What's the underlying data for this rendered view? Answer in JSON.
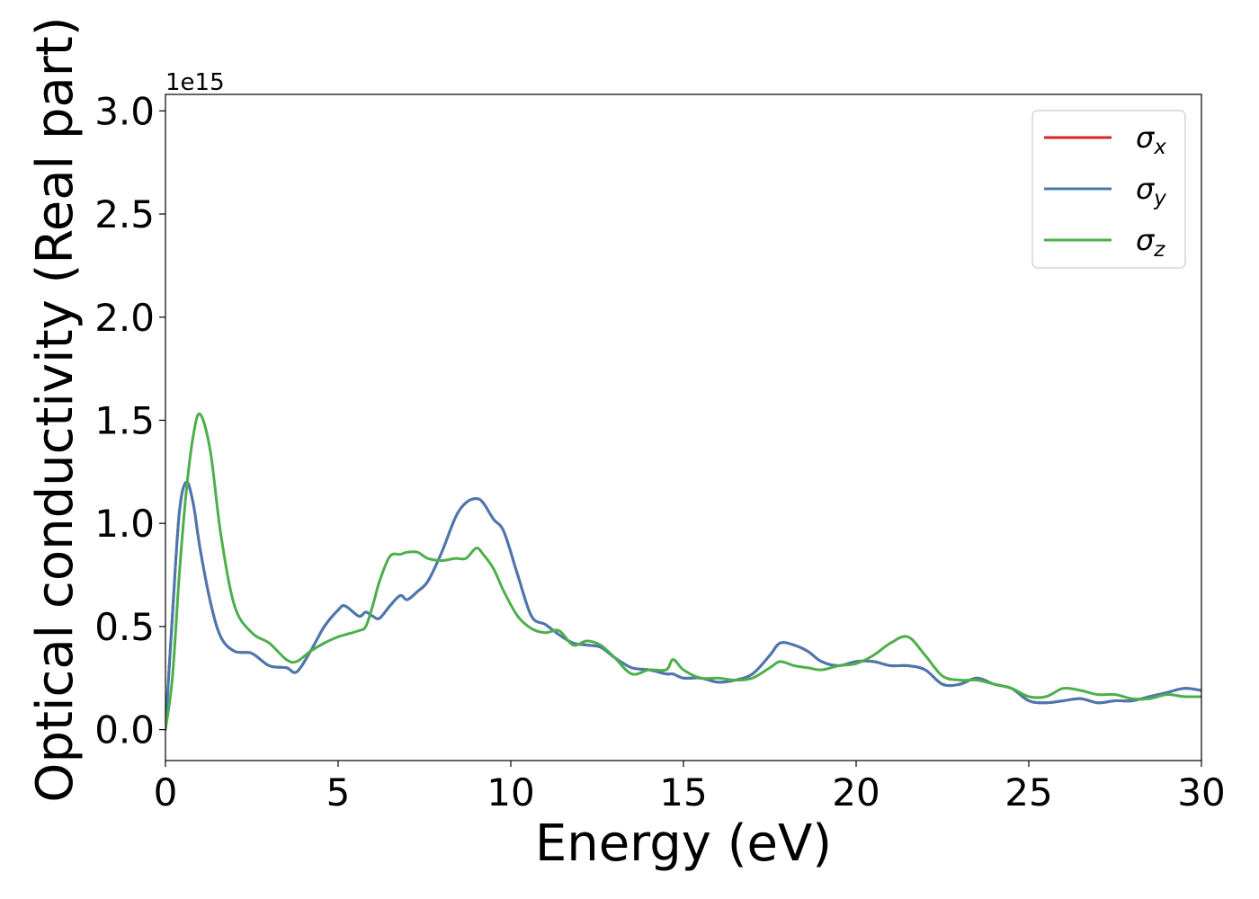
{
  "chart_data": {
    "type": "line",
    "title": "",
    "xlabel": "Energy (eV)",
    "ylabel": "Optical conductivity (Real part)",
    "y_offset_label": "1e15",
    "xlim": [
      0,
      30
    ],
    "ylim": [
      -0.15,
      3.08
    ],
    "x_ticks": [
      0,
      5,
      10,
      15,
      20,
      25,
      30
    ],
    "y_ticks": [
      0.0,
      0.5,
      1.0,
      1.5,
      2.0,
      2.5,
      3.0
    ],
    "x_tick_labels": [
      "0",
      "5",
      "10",
      "15",
      "20",
      "25",
      "30"
    ],
    "y_tick_labels": [
      "0.0",
      "0.5",
      "1.0",
      "1.5",
      "2.0",
      "2.5",
      "3.0"
    ],
    "grid": false,
    "legend_position": "top-right",
    "x": [
      0.0,
      0.2,
      0.4,
      0.6,
      0.8,
      1.0,
      1.3,
      1.6,
      2.0,
      2.5,
      3.0,
      3.5,
      3.8,
      4.2,
      4.6,
      5.0,
      5.2,
      5.6,
      5.8,
      6.0,
      6.2,
      6.5,
      6.8,
      7.0,
      7.3,
      7.6,
      8.0,
      8.4,
      8.7,
      9.0,
      9.2,
      9.5,
      9.8,
      10.2,
      10.6,
      11.0,
      11.4,
      11.8,
      12.2,
      12.6,
      13.0,
      13.5,
      14.0,
      14.5,
      14.7,
      15.0,
      15.5,
      16.0,
      16.5,
      17.0,
      17.5,
      17.8,
      18.2,
      18.6,
      19.0,
      19.5,
      20.0,
      20.5,
      21.0,
      21.5,
      22.0,
      22.5,
      23.0,
      23.5,
      24.0,
      24.5,
      25.0,
      25.5,
      26.0,
      26.5,
      27.0,
      27.5,
      28.0,
      28.5,
      29.0,
      29.5,
      30.0
    ],
    "series": [
      {
        "name": "σx",
        "label_base": "σ",
        "label_sub": "x",
        "color": "#d62728",
        "values": [
          0.0,
          0.55,
          1.05,
          1.2,
          1.1,
          0.88,
          0.62,
          0.45,
          0.38,
          0.37,
          0.31,
          0.3,
          0.28,
          0.38,
          0.5,
          0.58,
          0.6,
          0.55,
          0.57,
          0.55,
          0.54,
          0.6,
          0.65,
          0.63,
          0.67,
          0.72,
          0.86,
          1.03,
          1.1,
          1.12,
          1.1,
          1.02,
          0.96,
          0.75,
          0.55,
          0.51,
          0.46,
          0.42,
          0.41,
          0.4,
          0.35,
          0.3,
          0.29,
          0.27,
          0.27,
          0.25,
          0.25,
          0.23,
          0.24,
          0.27,
          0.36,
          0.42,
          0.41,
          0.38,
          0.33,
          0.31,
          0.33,
          0.33,
          0.31,
          0.31,
          0.29,
          0.22,
          0.22,
          0.25,
          0.22,
          0.2,
          0.14,
          0.13,
          0.14,
          0.15,
          0.13,
          0.14,
          0.14,
          0.16,
          0.18,
          0.2,
          0.19
        ]
      },
      {
        "name": "σy",
        "label_base": "σ",
        "label_sub": "y",
        "color": "#4878b0",
        "values": [
          0.0,
          0.55,
          1.05,
          1.2,
          1.1,
          0.88,
          0.62,
          0.45,
          0.38,
          0.37,
          0.31,
          0.3,
          0.28,
          0.38,
          0.5,
          0.58,
          0.6,
          0.55,
          0.57,
          0.55,
          0.54,
          0.6,
          0.65,
          0.63,
          0.67,
          0.72,
          0.86,
          1.03,
          1.1,
          1.12,
          1.1,
          1.02,
          0.96,
          0.75,
          0.55,
          0.51,
          0.46,
          0.42,
          0.41,
          0.4,
          0.35,
          0.3,
          0.29,
          0.27,
          0.27,
          0.25,
          0.25,
          0.23,
          0.24,
          0.27,
          0.36,
          0.42,
          0.41,
          0.38,
          0.33,
          0.31,
          0.33,
          0.33,
          0.31,
          0.31,
          0.29,
          0.22,
          0.22,
          0.25,
          0.22,
          0.2,
          0.14,
          0.13,
          0.14,
          0.15,
          0.13,
          0.14,
          0.14,
          0.16,
          0.18,
          0.2,
          0.19
        ]
      },
      {
        "name": "σz",
        "label_base": "σ",
        "label_sub": "z",
        "color": "#4daf4a",
        "values": [
          0.0,
          0.25,
          0.75,
          1.15,
          1.42,
          1.53,
          1.35,
          0.95,
          0.6,
          0.47,
          0.42,
          0.34,
          0.33,
          0.38,
          0.42,
          0.45,
          0.46,
          0.48,
          0.5,
          0.6,
          0.72,
          0.84,
          0.85,
          0.86,
          0.86,
          0.83,
          0.82,
          0.83,
          0.83,
          0.88,
          0.85,
          0.78,
          0.67,
          0.55,
          0.49,
          0.47,
          0.48,
          0.41,
          0.43,
          0.41,
          0.35,
          0.27,
          0.29,
          0.29,
          0.34,
          0.29,
          0.25,
          0.25,
          0.24,
          0.25,
          0.3,
          0.33,
          0.31,
          0.3,
          0.29,
          0.31,
          0.32,
          0.36,
          0.42,
          0.45,
          0.36,
          0.26,
          0.24,
          0.24,
          0.22,
          0.2,
          0.16,
          0.16,
          0.2,
          0.19,
          0.17,
          0.17,
          0.15,
          0.15,
          0.17,
          0.16,
          0.16
        ]
      }
    ]
  }
}
